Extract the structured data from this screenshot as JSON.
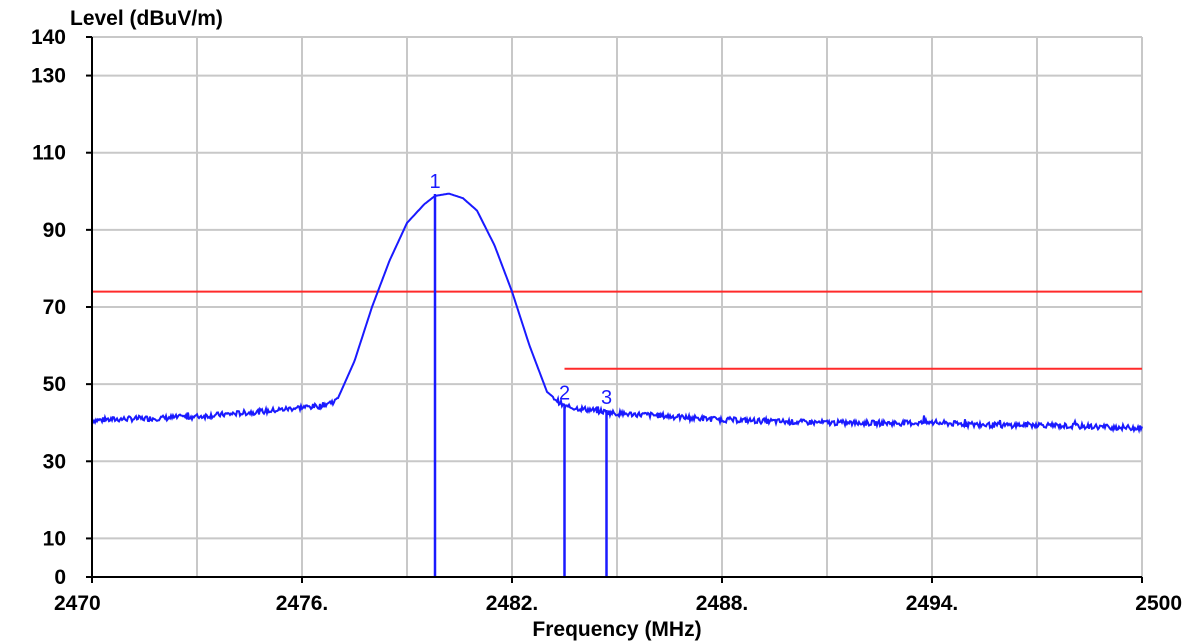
{
  "chart_data": {
    "type": "line",
    "title": "",
    "ylabel": "Level (dBuV/m)",
    "xlabel": "Frequency (MHz)",
    "xlim": [
      2470,
      2500
    ],
    "ylim": [
      0,
      140
    ],
    "grid": true,
    "x_ticks": [
      {
        "value": 2470,
        "label": "2470"
      },
      {
        "value": 2476,
        "label": "2476."
      },
      {
        "value": 2482,
        "label": "2482."
      },
      {
        "value": 2488,
        "label": "2488."
      },
      {
        "value": 2494,
        "label": "2494."
      },
      {
        "value": 2500,
        "label": "2500"
      }
    ],
    "x_minor_gridlines": [
      2473,
      2479,
      2485,
      2491,
      2497
    ],
    "y_ticks": [
      {
        "value": 0,
        "label": "0"
      },
      {
        "value": 10,
        "label": "10"
      },
      {
        "value": 30,
        "label": "30"
      },
      {
        "value": 50,
        "label": "50"
      },
      {
        "value": 70,
        "label": "70"
      },
      {
        "value": 90,
        "label": "90"
      },
      {
        "value": 110,
        "label": "110"
      },
      {
        "value": 130,
        "label": "130"
      },
      {
        "value": 140,
        "label": "140"
      }
    ],
    "colors": {
      "trace": "#1a1aff",
      "limit": "#ff2a2a",
      "grid": "#c8c8c8",
      "axis": "#000000",
      "marker": "#1a1aff"
    },
    "series": [
      {
        "values_x": [
          2470,
          2471,
          2472,
          2473,
          2474,
          2475,
          2476,
          2476.5,
          2477,
          2477.5,
          2478,
          2478.5,
          2479,
          2479.5,
          2479.8,
          2480.2,
          2480.6,
          2481,
          2481.5,
          2482,
          2482.5,
          2483,
          2483.5,
          2484,
          2484.5,
          2485,
          2486,
          2487,
          2488,
          2489,
          2490,
          2491,
          2492,
          2493,
          2494,
          2495,
          2496,
          2497,
          2498,
          2499,
          2500
        ],
        "values_y": [
          40.6,
          41.0,
          41.2,
          41.6,
          42.3,
          43.0,
          44.0,
          44.3,
          45.8,
          56,
          70,
          82,
          91.8,
          96.7,
          98.8,
          99.4,
          98.2,
          95,
          86,
          74,
          60,
          48,
          44.2,
          43.6,
          43.0,
          42.4,
          42.0,
          41.3,
          40.8,
          40.5,
          40.2,
          40.0,
          39.9,
          39.9,
          40.0,
          39.6,
          39.3,
          39.5,
          39.1,
          38.9,
          38.6
        ]
      }
    ],
    "limit_lines": [
      {
        "x_start": 2470,
        "x_end": 2500,
        "y": 74
      },
      {
        "x_start": 2483.5,
        "x_end": 2500,
        "y": 54
      }
    ],
    "markers": [
      {
        "label": "1",
        "x": 2479.8,
        "y": 99.3
      },
      {
        "label": "2",
        "x": 2483.5,
        "y": 44.5
      },
      {
        "label": "3",
        "x": 2484.7,
        "y": 43.3
      }
    ]
  }
}
